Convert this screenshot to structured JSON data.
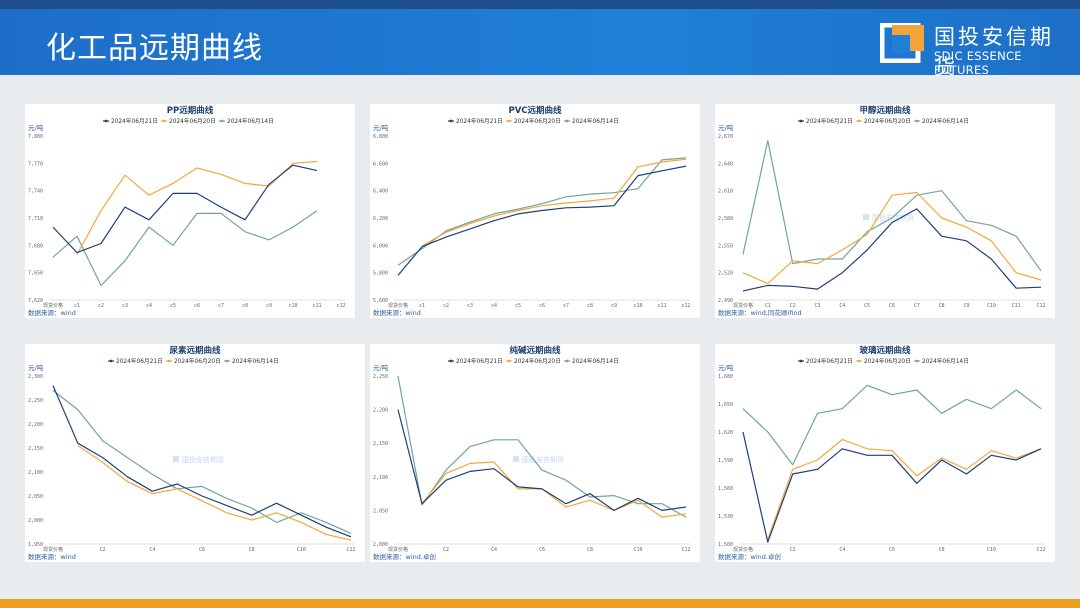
{
  "header": {
    "title": "化工品远期曲线"
  },
  "logo": {
    "name_cn": "国投安信期货",
    "name_en": "SDIC ESSENCE FUTURES"
  },
  "colors": {
    "series": [
      "#1f3f7a",
      "#f4a83c",
      "#6fa79b"
    ],
    "accent": "#1f7fd6"
  },
  "legend_labels": [
    "2024年06月21日",
    "2024年06月20日",
    "2024年06月14日"
  ],
  "chart_data": [
    {
      "type": "line",
      "title": "PP远期曲线",
      "unit": "元/吨",
      "source": "数据来源：wind",
      "watermark": "",
      "categories": [
        "近月",
        "c1",
        "c2",
        "c3",
        "c4",
        "c5",
        "c6",
        "c7",
        "c8",
        "c9",
        "c10",
        "c11",
        "c12"
      ],
      "category_labels": [
        "现货价格",
        "c1",
        "c2",
        "c3",
        "c4",
        "c5",
        "c6",
        "c7",
        "c8",
        "c9",
        "c10",
        "c11",
        "c12"
      ],
      "ylim": [
        7620,
        7800
      ],
      "yticks": [
        "7,620",
        "7,650",
        "7,680",
        "7,710",
        "7,740",
        "7,770",
        "7,800"
      ],
      "series": [
        {
          "name": "2024年06月21日",
          "values": [
            7700,
            7672,
            7682,
            7722,
            7708,
            7737,
            7737,
            7722,
            7708,
            7747,
            7768,
            7762,
            null
          ]
        },
        {
          "name": "2024年06月20日",
          "values": [
            null,
            7670,
            7718,
            7757,
            7735,
            7748,
            7765,
            7758,
            7748,
            7745,
            7770,
            7772,
            null
          ]
        },
        {
          "name": "2024年06月14日",
          "values": [
            7667,
            7690,
            7636,
            7663,
            7700,
            7680,
            7715,
            7715,
            7695,
            7686,
            7700,
            7718,
            null
          ]
        }
      ],
      "legend_position": "top",
      "grid": false
    },
    {
      "type": "line",
      "title": "PVC远期曲线",
      "unit": "元/吨",
      "source": "数据来源：wind",
      "watermark": "",
      "categories": [
        "近月",
        "c1",
        "c2",
        "c3",
        "c4",
        "c5",
        "c6",
        "c7",
        "c8",
        "c9",
        "c10",
        "c11",
        "c12"
      ],
      "category_labels": [
        "现货价格",
        "c1",
        "c2",
        "c3",
        "c4",
        "c5",
        "c6",
        "c7",
        "c8",
        "c9",
        "c10",
        "c11",
        "c12"
      ],
      "ylim": [
        5600,
        6800
      ],
      "yticks": [
        "5,600",
        "5,800",
        "6,000",
        "6,200",
        "6,400",
        "6,600",
        "6,800"
      ],
      "series": [
        {
          "name": "2024年06月21日",
          "values": [
            5780,
            5990,
            6060,
            6120,
            6180,
            6230,
            6255,
            6275,
            6280,
            6290,
            6510,
            6545,
            6580
          ]
        },
        {
          "name": "2024年06月20日",
          "values": [
            null,
            5995,
            6095,
            6160,
            6215,
            6255,
            6290,
            6310,
            6325,
            6345,
            6575,
            6610,
            6630
          ]
        },
        {
          "name": "2024年06月14日",
          "values": [
            5855,
            5975,
            6105,
            6170,
            6230,
            6265,
            6305,
            6355,
            6375,
            6385,
            6415,
            6625,
            6640
          ]
        }
      ],
      "legend_position": "top",
      "grid": false
    },
    {
      "type": "line",
      "title": "甲醇远期曲线",
      "unit": "元/吨",
      "source": "数据来源：wind,同花顺ifind",
      "watermark": "国投安信期货",
      "categories": [
        "近月",
        "C1",
        "C2",
        "C3",
        "C4",
        "C5",
        "C6",
        "C7",
        "C8",
        "C9",
        "C10",
        "C11",
        "C12"
      ],
      "category_labels": [
        "现货价格",
        "C1",
        "C2",
        "C3",
        "C4",
        "C5",
        "C6",
        "C7",
        "C8",
        "C9",
        "C10",
        "C11",
        "C12"
      ],
      "ylim": [
        2490,
        2670
      ],
      "yticks": [
        "2,490",
        "2,520",
        "2,550",
        "2,580",
        "2,610",
        "2,640",
        "2,670"
      ],
      "series": [
        {
          "name": "2024年06月21日",
          "values": [
            2500,
            2506,
            2505,
            2502,
            2520,
            2545,
            2575,
            2590,
            2560,
            2555,
            2535,
            2503,
            2504
          ]
        },
        {
          "name": "2024年06月20日",
          "values": [
            2520,
            2508,
            2533,
            2530,
            2545,
            2562,
            2605,
            2608,
            2580,
            2570,
            2555,
            2520,
            2512
          ]
        },
        {
          "name": "2024年06月14日",
          "values": [
            2540,
            2665,
            2530,
            2535,
            2535,
            2565,
            2580,
            2605,
            2610,
            2577,
            2572,
            2560,
            2522
          ]
        }
      ],
      "legend_position": "top",
      "grid": false
    },
    {
      "type": "line",
      "title": "尿素远期曲线",
      "unit": "元/吨",
      "source": "数据来源：wind",
      "watermark": "国投安信期货",
      "categories": [
        "近月",
        "C1",
        "C2",
        "C3",
        "C4",
        "C5",
        "C6",
        "C7",
        "C8",
        "C9",
        "C10",
        "C11",
        "C12"
      ],
      "category_labels": [
        "现货价格",
        "",
        "C2",
        "",
        "C4",
        "",
        "C6",
        "",
        "C8",
        "",
        "C10",
        "",
        "C12"
      ],
      "ylim": [
        1950,
        2300
      ],
      "yticks": [
        "1,950",
        "2,000",
        "2,050",
        "2,100",
        "2,150",
        "2,200",
        "2,250",
        "2,300"
      ],
      "series": [
        {
          "name": "2024年06月21日",
          "values": [
            2280,
            2160,
            2130,
            2090,
            2060,
            2075,
            2050,
            2030,
            2010,
            2035,
            2010,
            1985,
            1965
          ]
        },
        {
          "name": "2024年06月20日",
          "values": [
            null,
            2155,
            2120,
            2080,
            2055,
            2065,
            2040,
            2015,
            2000,
            2015,
            1995,
            1970,
            1958
          ]
        },
        {
          "name": "2024年06月14日",
          "values": [
            2270,
            2230,
            2165,
            2130,
            2095,
            2065,
            2070,
            2045,
            2025,
            1995,
            2015,
            1995,
            1972
          ]
        }
      ],
      "legend_position": "top",
      "grid": false
    },
    {
      "type": "line",
      "title": "纯碱远期曲线",
      "unit": "元/吨",
      "source": "数据来源：wind.卓创",
      "watermark": "国投安信期货",
      "categories": [
        "近月",
        "C1",
        "C2",
        "C3",
        "C4",
        "C5",
        "C6",
        "C7",
        "C8",
        "C9",
        "C10",
        "C11",
        "C12"
      ],
      "category_labels": [
        "现货价格",
        "",
        "C2",
        "",
        "C4",
        "",
        "C6",
        "",
        "C8",
        "",
        "C10",
        "",
        "C12"
      ],
      "ylim": [
        2000,
        2250
      ],
      "yticks": [
        "2,000",
        "2,050",
        "2,100",
        "2,150",
        "2,200",
        "2,250"
      ],
      "series": [
        {
          "name": "2024年06月21日",
          "values": [
            2200,
            2060,
            2095,
            2108,
            2112,
            2085,
            2082,
            2060,
            2075,
            2050,
            2068,
            2050,
            2055
          ]
        },
        {
          "name": "2024年06月20日",
          "values": [
            null,
            2060,
            2105,
            2120,
            2122,
            2082,
            2082,
            2055,
            2065,
            2050,
            2065,
            2040,
            2045
          ]
        },
        {
          "name": "2024年06月14日",
          "values": [
            2250,
            2058,
            2110,
            2145,
            2155,
            2155,
            2110,
            2095,
            2070,
            2072,
            2060,
            2060,
            2040
          ]
        }
      ],
      "legend_position": "top",
      "grid": false
    },
    {
      "type": "line",
      "title": "玻璃远期曲线",
      "unit": "元/吨",
      "source": "数据来源：wind.卓创",
      "watermark": "",
      "categories": [
        "近月",
        "C1",
        "C2",
        "C3",
        "C4",
        "C5",
        "C6",
        "C7",
        "C8",
        "C9",
        "C10",
        "C11",
        "C12"
      ],
      "category_labels": [
        "现货价格",
        "",
        "C2",
        "",
        "C4",
        "",
        "C6",
        "",
        "C8",
        "",
        "C10",
        "",
        "C12"
      ],
      "ylim": [
        1500,
        1680
      ],
      "yticks": [
        "1,500",
        "1,530",
        "1,560",
        "1,590",
        "1,620",
        "1,650",
        "1,680"
      ],
      "series": [
        {
          "name": "2024年06月21日",
          "values": [
            1620,
            1502,
            1575,
            1580,
            1602,
            1595,
            1595,
            1565,
            1590,
            1575,
            1595,
            1590,
            1602
          ]
        },
        {
          "name": "2024年06月20日",
          "values": [
            null,
            1505,
            1580,
            1590,
            1612,
            1602,
            1600,
            1573,
            1592,
            1580,
            1600,
            1592,
            1602
          ]
        },
        {
          "name": "2024年06月14日",
          "values": [
            1645,
            1620,
            1585,
            1640,
            1645,
            1670,
            1660,
            1665,
            1640,
            1655,
            1645,
            1665,
            1645
          ]
        }
      ],
      "legend_position": "top",
      "grid": false
    }
  ]
}
